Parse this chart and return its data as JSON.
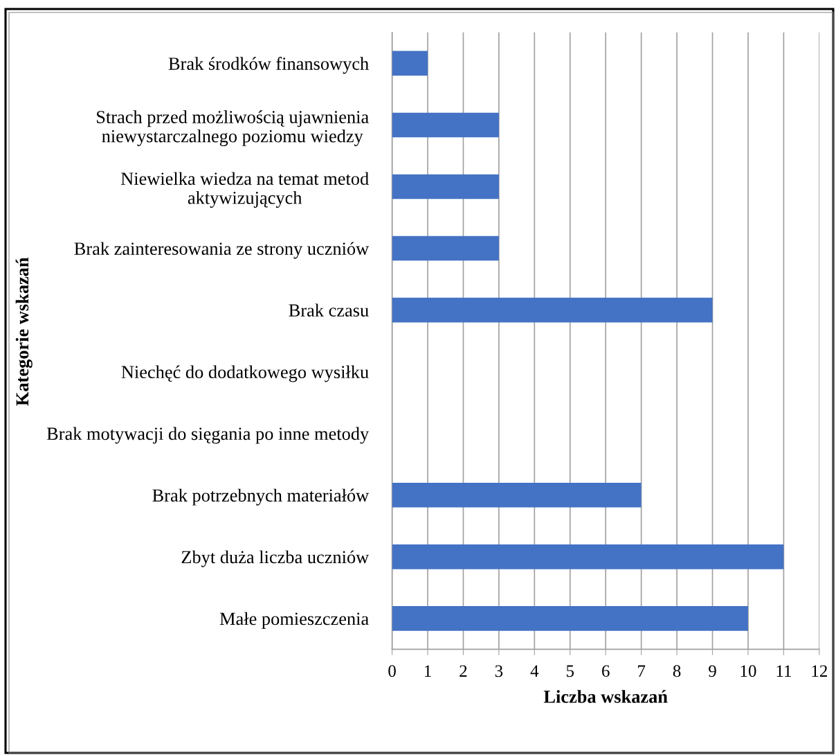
{
  "chart_data": {
    "type": "bar",
    "orientation": "horizontal",
    "categories": [
      "Brak środków finansowych",
      "Strach przed możliwością ujawnienia\nniewystarczalnego poziomu wiedzy",
      "Niewielka wiedza na temat metod\naktywizujących",
      "Brak zainteresowania ze strony uczniów",
      "Brak czasu",
      "Niechęć do dodatkowego wysiłku",
      "Brak motywacji do sięgania po inne metody",
      "Brak potrzebnych materiałów",
      "Zbyt duża liczba uczniów",
      "Małe pomieszczenia"
    ],
    "values": [
      1,
      3,
      3,
      3,
      9,
      0,
      0,
      7,
      11,
      10
    ],
    "color": "#4472c4",
    "xlabel": "Liczba wskazań",
    "ylabel": "Kategorie wskazań",
    "xlim": [
      0,
      12
    ],
    "xticks": [
      0,
      1,
      2,
      3,
      4,
      5,
      6,
      7,
      8,
      9,
      10,
      11,
      12
    ],
    "grid": "x"
  }
}
